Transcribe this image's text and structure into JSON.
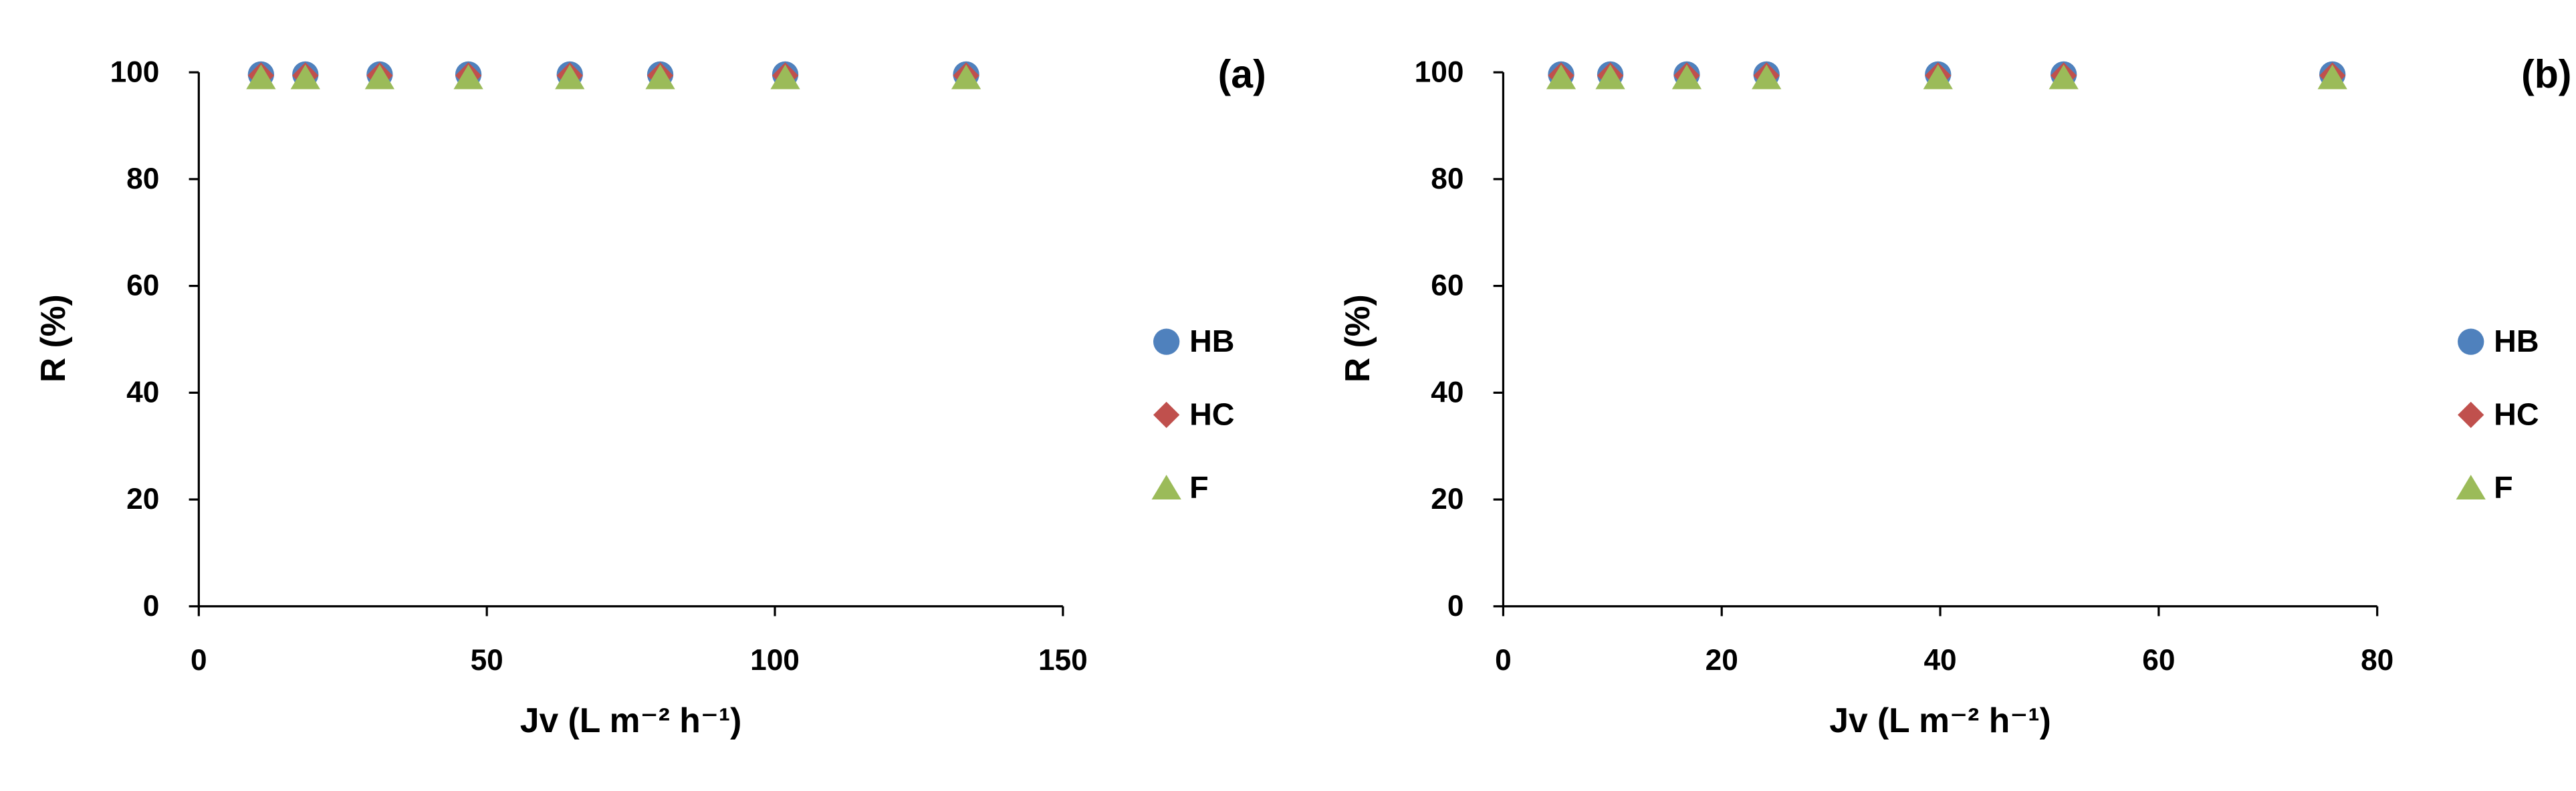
{
  "chart_data": [
    {
      "type": "scatter",
      "panel_label": "(a)",
      "x_label": "Jv (L m⁻² h⁻¹)",
      "y_label": "R (%)",
      "x": [
        10.8,
        18.5,
        31.4,
        46.8,
        64.4,
        80.1,
        101.8,
        133.2
      ],
      "xlim": [
        0,
        150
      ],
      "xticks": [
        0,
        50,
        100,
        150
      ],
      "ylim": [
        0,
        100
      ],
      "yticks": [
        0,
        20,
        40,
        60,
        80,
        100
      ],
      "grid": false,
      "legend": "right",
      "series": [
        {
          "name": "HB",
          "color": "#4f81bd",
          "marker": "circle",
          "values": [
            99.6,
            99.6,
            99.6,
            99.6,
            99.6,
            99.6,
            99.6,
            99.6
          ]
        },
        {
          "name": "HC",
          "color": "#c0504d",
          "marker": "diamond",
          "values": [
            99.4,
            99.4,
            99.4,
            99.4,
            99.4,
            99.4,
            99.4,
            99.4
          ]
        },
        {
          "name": "F",
          "color": "#9bbb59",
          "marker": "triangle",
          "values": [
            99.0,
            99.0,
            99.0,
            99.0,
            99.0,
            99.0,
            99.0,
            99.0
          ]
        }
      ]
    },
    {
      "type": "scatter",
      "panel_label": "(b)",
      "x_label": "Jv (L m⁻² h⁻¹)",
      "y_label": "R (%)",
      "x": [
        5.3,
        9.8,
        16.8,
        24.1,
        39.8,
        51.3,
        75.9
      ],
      "xlim": [
        0,
        80
      ],
      "xticks": [
        0,
        20,
        40,
        60,
        80
      ],
      "ylim": [
        0,
        100
      ],
      "yticks": [
        0,
        20,
        40,
        60,
        80,
        100
      ],
      "grid": false,
      "legend": "right",
      "series": [
        {
          "name": "HB",
          "color": "#4f81bd",
          "marker": "circle",
          "values": [
            99.6,
            99.6,
            99.6,
            99.6,
            99.6,
            99.6,
            99.6
          ]
        },
        {
          "name": "HC",
          "color": "#c0504d",
          "marker": "diamond",
          "values": [
            99.4,
            99.4,
            99.4,
            99.4,
            99.4,
            99.4,
            99.4
          ]
        },
        {
          "name": "F",
          "color": "#9bbb59",
          "marker": "triangle",
          "values": [
            99.0,
            99.0,
            99.0,
            99.0,
            99.0,
            99.0,
            99.0
          ]
        }
      ]
    }
  ]
}
